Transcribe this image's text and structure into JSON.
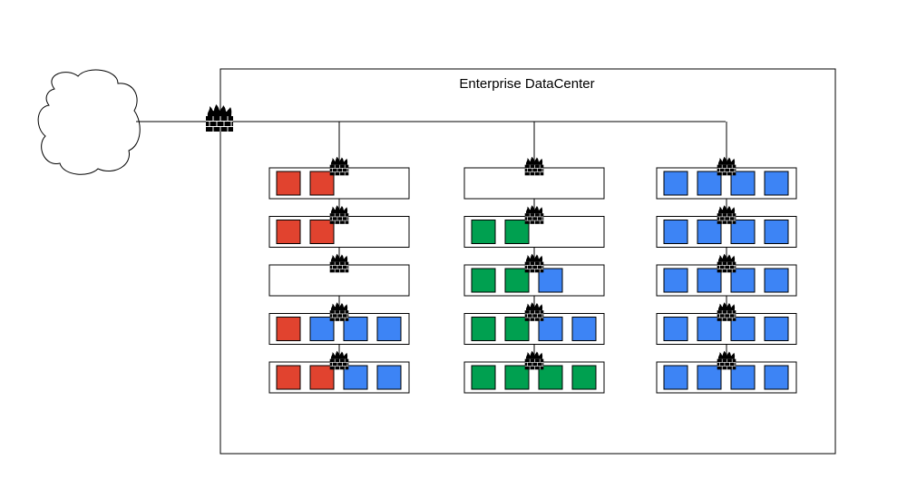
{
  "datacenter": {
    "title": "Enterprise DataCenter"
  },
  "colors": {
    "red": "#e1432f",
    "green": "#00a050",
    "blue": "#3d84f5",
    "line": "#000000",
    "background": "#ffffff"
  },
  "icons": {
    "internet": "cloud-icon",
    "firewall": "firewall-icon"
  },
  "columns": [
    {
      "racks": [
        [
          "red",
          "red"
        ],
        [
          "red",
          "red"
        ],
        [],
        [
          "red",
          "blue",
          "blue",
          "blue"
        ],
        [
          "red",
          "red",
          "blue",
          "blue"
        ]
      ]
    },
    {
      "racks": [
        [],
        [
          "green",
          "green"
        ],
        [
          "green",
          "green",
          "blue"
        ],
        [
          "green",
          "green",
          "blue",
          "blue"
        ],
        [
          "green",
          "green",
          "green",
          "green"
        ]
      ]
    },
    {
      "racks": [
        [
          "blue",
          "blue",
          "blue",
          "blue"
        ],
        [
          "blue",
          "blue",
          "blue",
          "blue"
        ],
        [
          "blue",
          "blue",
          "blue",
          "blue"
        ],
        [
          "blue",
          "blue",
          "blue",
          "blue"
        ],
        [
          "blue",
          "blue",
          "blue",
          "blue"
        ]
      ]
    }
  ]
}
